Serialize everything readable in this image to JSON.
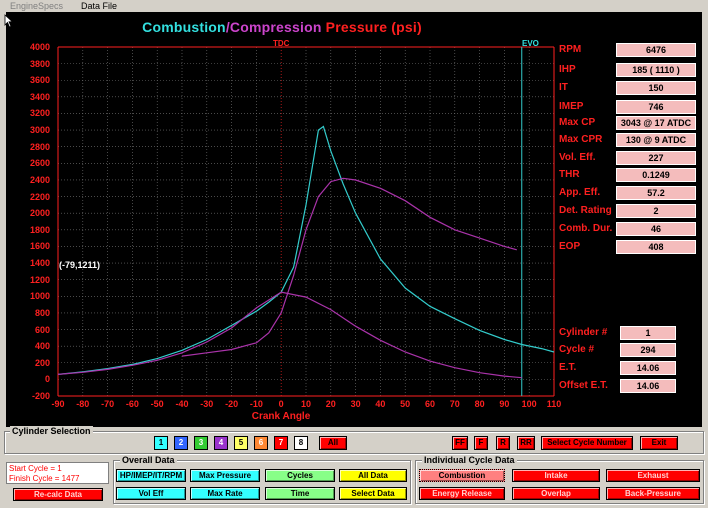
{
  "menu": {
    "items": [
      "EngineSpecs",
      "Data File"
    ]
  },
  "chart": {
    "title_part1": "Combustion",
    "title_sep": "/",
    "title_part2": "Compression",
    "title_part3": " Pressure (psi)",
    "y_ticks": [
      "4000",
      "3800",
      "3600",
      "3400",
      "3200",
      "3000",
      "2800",
      "2600",
      "2400",
      "2200",
      "2000",
      "1800",
      "1600",
      "1400",
      "1200",
      "1000",
      "800",
      "600",
      "400",
      "200",
      "0",
      "-200"
    ],
    "x_ticks": [
      "-90",
      "-80",
      "-70",
      "-60",
      "-50",
      "-40",
      "-30",
      "-20",
      "-10",
      "0",
      "10",
      "20",
      "30",
      "40",
      "50",
      "60",
      "70",
      "80",
      "90",
      "100",
      "110"
    ],
    "xlabel": "Crank Angle",
    "tdc_label": "TDC",
    "evo_label": "EVO",
    "cursor_readout": "(-79,1211)",
    "colors": {
      "combustion": "#33cccc",
      "compression": "#aa33aa",
      "grid": "#ffffff",
      "axis": "#ff2020"
    }
  },
  "chart_data": {
    "type": "line",
    "title": "Combustion/Compression Pressure (psi)",
    "xlabel": "Crank Angle",
    "ylabel": "",
    "xlim": [
      -90,
      110
    ],
    "ylim": [
      -200,
      4000
    ],
    "markers": [
      {
        "label": "TDC",
        "x": 0
      },
      {
        "label": "EVO",
        "x": 97
      }
    ],
    "series": [
      {
        "name": "Combustion",
        "color": "#33cccc",
        "points": [
          [
            -90,
            60
          ],
          [
            -80,
            90
          ],
          [
            -70,
            130
          ],
          [
            -60,
            180
          ],
          [
            -50,
            250
          ],
          [
            -40,
            350
          ],
          [
            -30,
            480
          ],
          [
            -20,
            650
          ],
          [
            -10,
            820
          ],
          [
            -5,
            930
          ],
          [
            0,
            1050
          ],
          [
            5,
            1350
          ],
          [
            10,
            2100
          ],
          [
            15,
            3000
          ],
          [
            17,
            3043
          ],
          [
            20,
            2750
          ],
          [
            25,
            2350
          ],
          [
            30,
            2000
          ],
          [
            40,
            1450
          ],
          [
            50,
            1100
          ],
          [
            60,
            880
          ],
          [
            70,
            730
          ],
          [
            80,
            590
          ],
          [
            90,
            480
          ],
          [
            97,
            420
          ],
          [
            105,
            370
          ],
          [
            110,
            330
          ]
        ]
      },
      {
        "name": "Compression",
        "color": "#aa33aa",
        "points": [
          [
            -40,
            280
          ],
          [
            -30,
            320
          ],
          [
            -20,
            360
          ],
          [
            -10,
            440
          ],
          [
            -5,
            560
          ],
          [
            0,
            800
          ],
          [
            5,
            1250
          ],
          [
            10,
            1800
          ],
          [
            15,
            2200
          ],
          [
            20,
            2380
          ],
          [
            25,
            2420
          ],
          [
            30,
            2400
          ],
          [
            40,
            2300
          ],
          [
            50,
            2150
          ],
          [
            60,
            1950
          ],
          [
            70,
            1800
          ],
          [
            80,
            1700
          ],
          [
            90,
            1600
          ],
          [
            95,
            1560
          ]
        ]
      },
      {
        "name": "Motoring",
        "color": "#aa33aa",
        "points": [
          [
            -90,
            60
          ],
          [
            -80,
            85
          ],
          [
            -70,
            120
          ],
          [
            -60,
            170
          ],
          [
            -50,
            230
          ],
          [
            -40,
            320
          ],
          [
            -30,
            450
          ],
          [
            -20,
            620
          ],
          [
            -10,
            860
          ],
          [
            0,
            1050
          ],
          [
            10,
            990
          ],
          [
            20,
            840
          ],
          [
            30,
            640
          ],
          [
            40,
            470
          ],
          [
            50,
            330
          ],
          [
            60,
            220
          ],
          [
            70,
            140
          ],
          [
            80,
            80
          ],
          [
            90,
            40
          ],
          [
            97,
            20
          ]
        ]
      }
    ]
  },
  "stats": [
    {
      "label": "RPM",
      "value": "6476"
    },
    {
      "label": "IHP",
      "value": "185 ( 1110 )"
    },
    {
      "label": "IT",
      "value": "150"
    },
    {
      "label": "IMEP",
      "value": "746"
    },
    {
      "label": "Max CP",
      "value": "3043 @ 17 ATDC"
    },
    {
      "label": "Max CPR",
      "value": "130 @ 9 ATDC"
    },
    {
      "label": "Vol. Eff.",
      "value": "227"
    },
    {
      "label": "THR",
      "value": "0.1249"
    },
    {
      "label": "App. Eff.",
      "value": "57.2"
    },
    {
      "label": "Det. Rating",
      "value": "2"
    },
    {
      "label": "Comb. Dur.",
      "value": "46"
    },
    {
      "label": "EOP",
      "value": "408"
    }
  ],
  "cycle_stats": [
    {
      "label": "Cylinder #",
      "value": "1"
    },
    {
      "label": "Cycle #",
      "value": "294"
    },
    {
      "label": "E.T.",
      "value": "14.06"
    },
    {
      "label": "Offset E.T.",
      "value": "14.06"
    }
  ],
  "cylinder_selection": {
    "title": "Cylinder Selection",
    "buttons": [
      {
        "label": "1",
        "color": "#33ffff",
        "text": "#000"
      },
      {
        "label": "2",
        "color": "#3366ff",
        "text": "#fff"
      },
      {
        "label": "3",
        "color": "#33cc33",
        "text": "#fff"
      },
      {
        "label": "4",
        "color": "#9933cc",
        "text": "#fff"
      },
      {
        "label": "5",
        "color": "#ffff66",
        "text": "#000"
      },
      {
        "label": "6",
        "color": "#ff8833",
        "text": "#fff"
      },
      {
        "label": "7",
        "color": "#ff0000",
        "text": "#fff"
      },
      {
        "label": "8",
        "color": "#ffffff",
        "text": "#000"
      }
    ],
    "all_label": "All"
  },
  "nav": {
    "ff": "FF",
    "f": "F",
    "r": "R",
    "rr": "RR",
    "select_cycle": "Select Cycle Number",
    "exit": "Exit"
  },
  "cycle_range": {
    "start": "Start Cycle = 1",
    "finish": "Finish Cycle = 1477"
  },
  "recalc_label": "Re-calc Data",
  "overall": {
    "title": "Overall Data",
    "hp": "HP/IMEP/IT/RPM",
    "max_pressure": "Max Pressure",
    "cycles": "Cycles",
    "all_data": "All Data",
    "vol_eff": "Vol Eff",
    "max_rate": "Max Rate",
    "time": "Time",
    "select_data": "Select Data"
  },
  "individual": {
    "title": "Individual Cycle Data",
    "combustion": "Combustion",
    "intake": "Intake",
    "exhaust": "Exhaust",
    "energy_release": "Energy Release",
    "overlap": "Overlap",
    "back_pressure": "Back-Pressure"
  }
}
